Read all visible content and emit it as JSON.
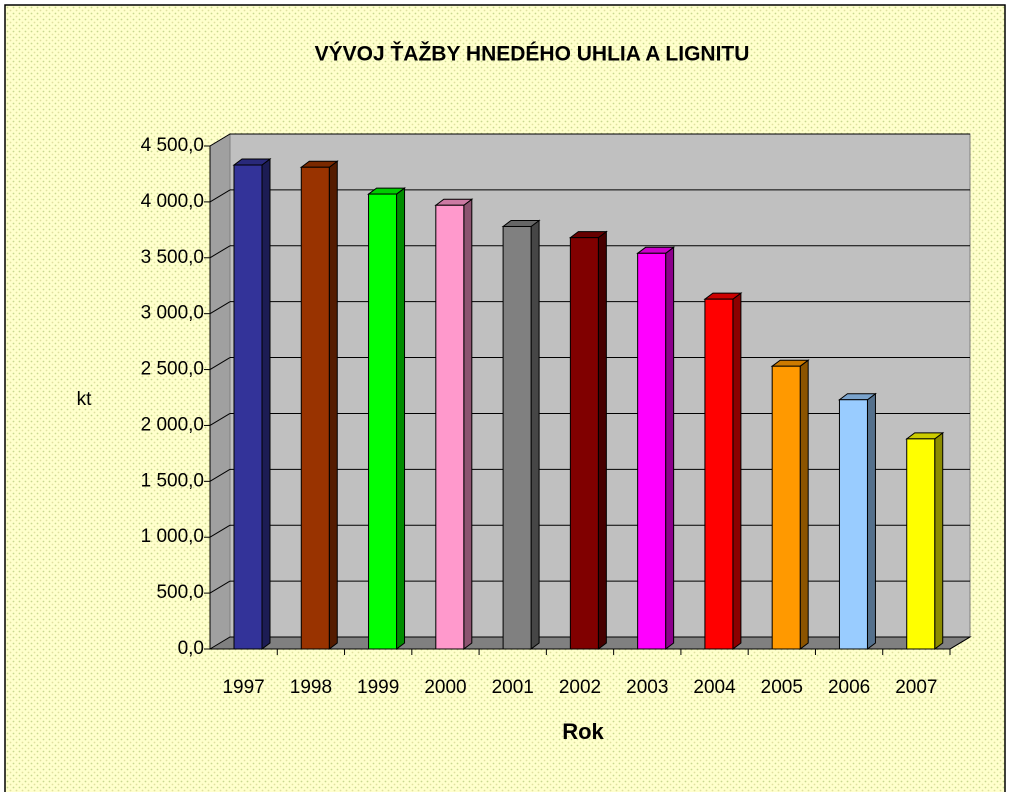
{
  "chart_data": {
    "type": "bar3d",
    "title": "VÝVOJ ŤAŽBY HNEDÉHO UHLIA A LIGNITU",
    "x_label": "Rok",
    "y_label": "kt",
    "categories": [
      "1997",
      "1998",
      "1999",
      "2000",
      "2001",
      "2002",
      "2003",
      "2004",
      "2005",
      "2006",
      "2007"
    ],
    "values": [
      4330,
      4310,
      4070,
      3970,
      3780,
      3680,
      3540,
      3130,
      2530,
      2230,
      1880
    ],
    "colors": [
      "#333399",
      "#993300",
      "#00ff00",
      "#ff99cc",
      "#808080",
      "#800000",
      "#ff00ff",
      "#ff0000",
      "#ff9900",
      "#99ccff",
      "#ffff00"
    ],
    "ylim": [
      0,
      4500
    ],
    "yticks": [
      {
        "value": 0,
        "label": "0,0"
      },
      {
        "value": 500,
        "label": "500,0"
      },
      {
        "value": 1000,
        "label": "1 000,0"
      },
      {
        "value": 1500,
        "label": "1 500,0"
      },
      {
        "value": 2000,
        "label": "2 000,0"
      },
      {
        "value": 2500,
        "label": "2 500,0"
      },
      {
        "value": 3000,
        "label": "3 000,0"
      },
      {
        "value": 3500,
        "label": "3 500,0"
      },
      {
        "value": 4000,
        "label": "4 000,0"
      },
      {
        "value": 4500,
        "label": "4 500,0"
      }
    ],
    "grid": true
  }
}
